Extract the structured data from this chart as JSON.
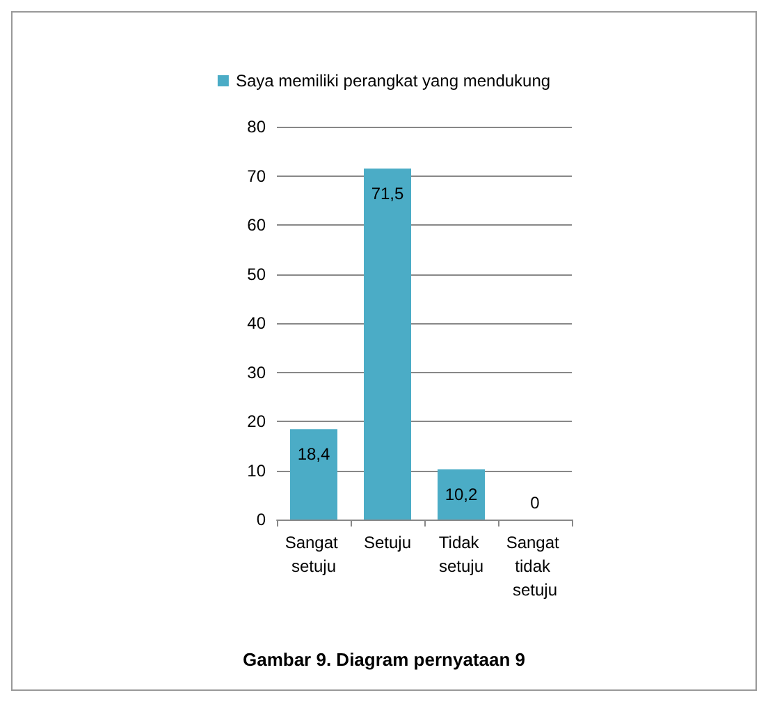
{
  "chart_data": {
    "type": "bar",
    "categories": [
      "Sangat setuju",
      "Setuju",
      "Tidak setuju",
      "Sangat tidak setuju"
    ],
    "series": [
      {
        "name": "Saya memiliki perangkat yang mendukung",
        "color": "#4bacc6",
        "values": [
          18.4,
          71.5,
          10.2,
          0
        ],
        "value_labels": [
          "18,4",
          "71,5",
          "10,2",
          "0"
        ]
      }
    ],
    "ylim": [
      0,
      80
    ],
    "yticks": [
      0,
      10,
      20,
      30,
      40,
      50,
      60,
      70,
      80
    ],
    "grid": "y",
    "legend": "top",
    "annotations": [
      "Gambar 9. Diagram pernyataan 9"
    ]
  }
}
